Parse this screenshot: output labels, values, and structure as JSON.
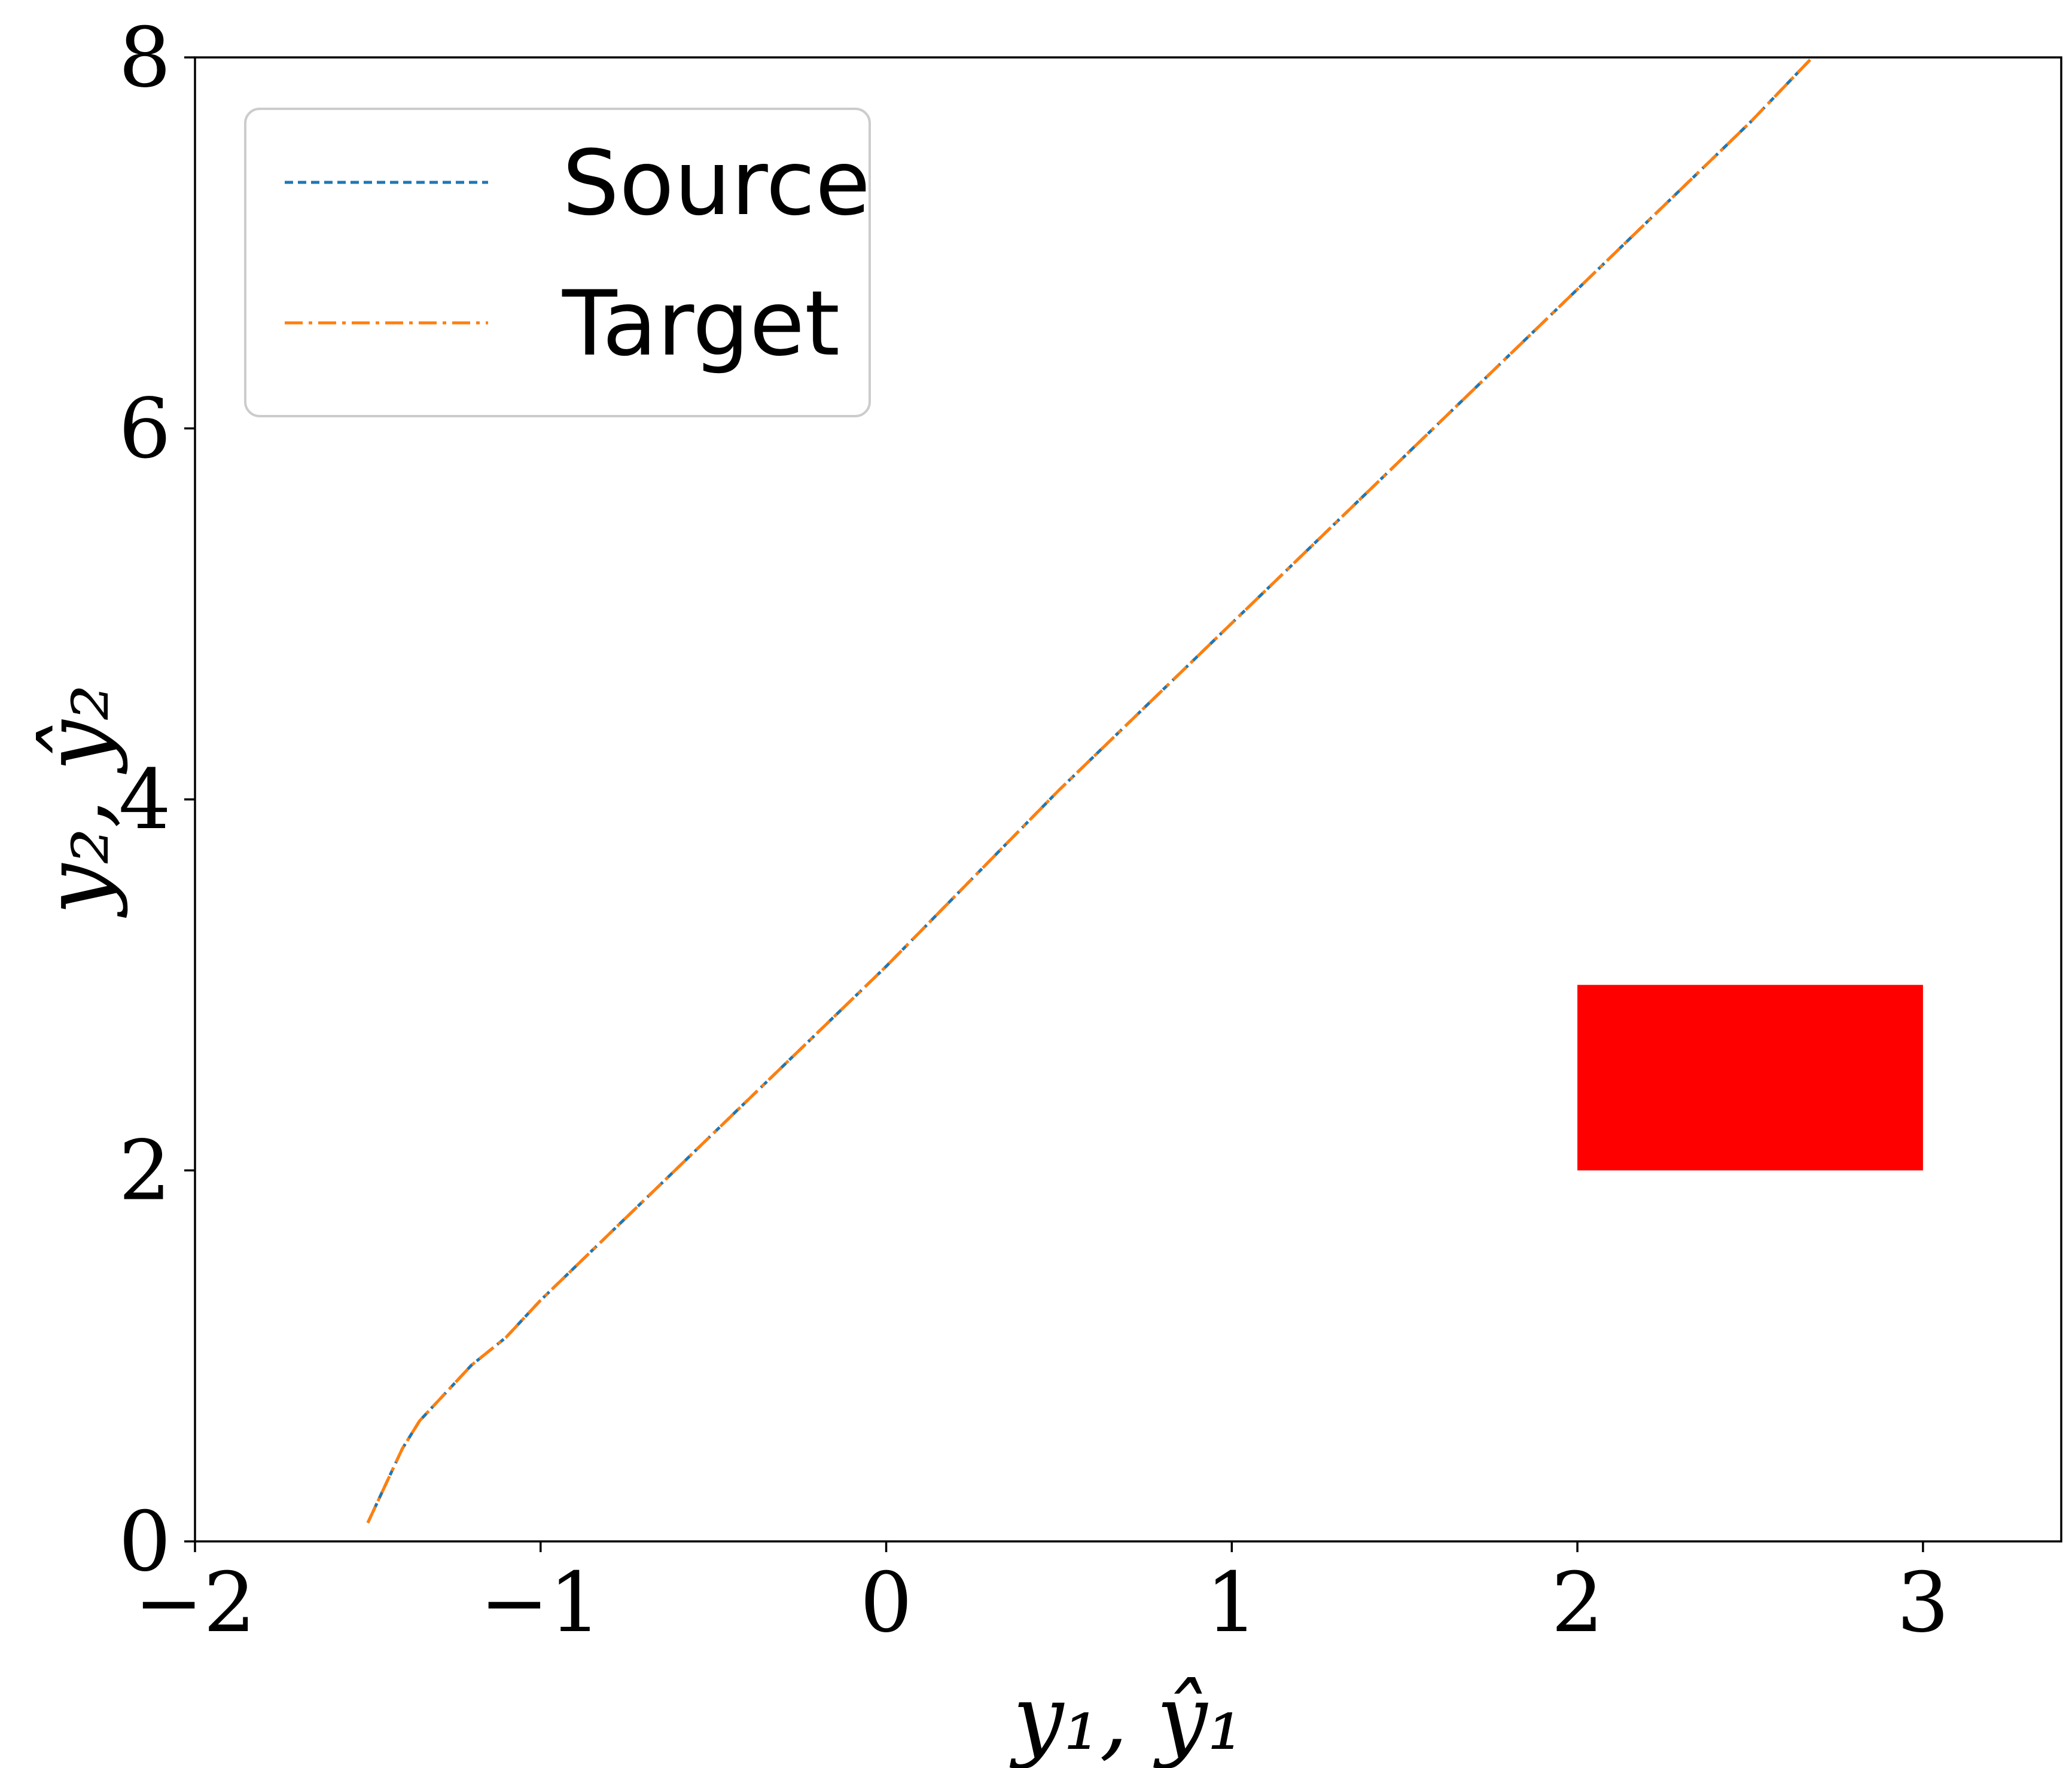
{
  "chart_data": {
    "type": "line",
    "title": "",
    "xlabel": "y₁, ŷ₁",
    "ylabel": "y₂, ŷ₂",
    "xlim": [
      -2,
      3.4
    ],
    "ylim": [
      0,
      8
    ],
    "xticks": [
      -2,
      -1,
      0,
      1,
      2,
      3
    ],
    "xtick_labels": [
      "−2",
      "−1",
      "0",
      "1",
      "2",
      "3"
    ],
    "yticks": [
      0,
      2,
      4,
      6,
      8
    ],
    "ytick_labels": [
      "0",
      "2",
      "4",
      "6",
      "8"
    ],
    "grid": false,
    "legend_position": "top-left",
    "series": [
      {
        "name": "Source",
        "color": "#1f77b4",
        "style": "dashed",
        "x": [
          -1.5,
          -1.45,
          -1.4,
          -1.35,
          -1.3,
          -1.2,
          -1.1,
          -1.0,
          -0.5,
          0.0,
          0.5,
          1.0,
          1.5,
          2.0,
          2.5,
          2.68
        ],
        "y": [
          0.1,
          0.3,
          0.5,
          0.65,
          0.75,
          0.95,
          1.1,
          1.3,
          2.2,
          3.1,
          4.05,
          4.95,
          5.85,
          6.75,
          7.65,
          8.0
        ]
      },
      {
        "name": "Target",
        "color": "#ff7f0e",
        "style": "dashdot",
        "x": [
          -1.5,
          -1.45,
          -1.4,
          -1.35,
          -1.3,
          -1.2,
          -1.1,
          -1.0,
          -0.5,
          0.0,
          0.5,
          1.0,
          1.5,
          2.0,
          2.5,
          2.68
        ],
        "y": [
          0.1,
          0.3,
          0.5,
          0.65,
          0.75,
          0.95,
          1.1,
          1.3,
          2.2,
          3.1,
          4.05,
          4.95,
          5.85,
          6.75,
          7.65,
          8.0
        ]
      }
    ],
    "annotations": [
      {
        "type": "rectangle",
        "x": [
          2,
          3
        ],
        "y": [
          2,
          3
        ],
        "color": "#ff0000"
      }
    ]
  }
}
